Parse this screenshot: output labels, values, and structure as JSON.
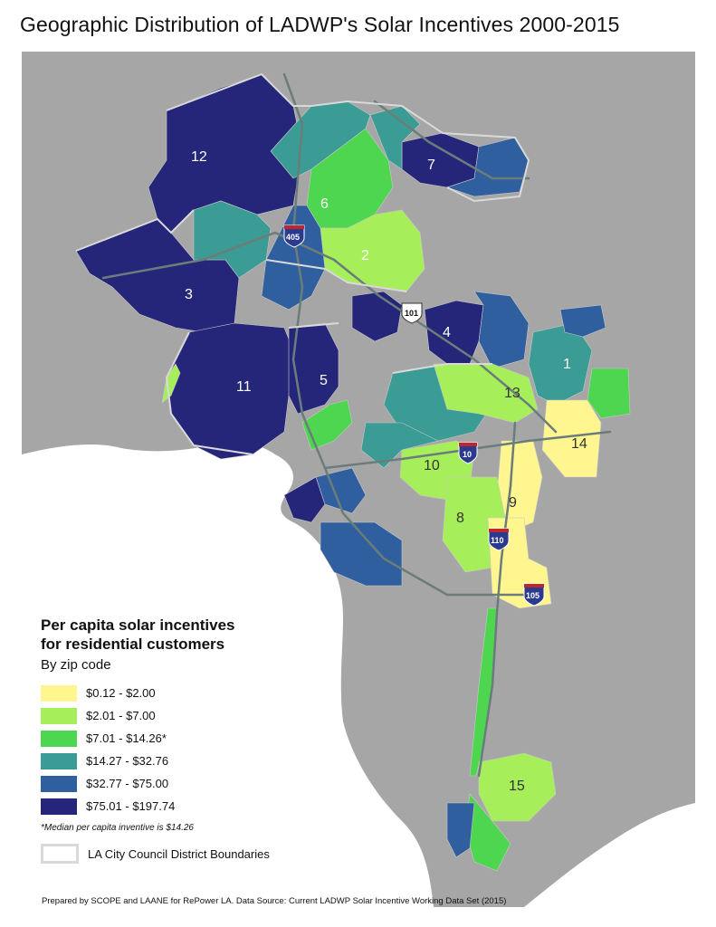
{
  "title": "Geographic Distribution of LADWP's Solar Incentives 2000-2015",
  "colors": {
    "background": "#a6a6a6",
    "ocean": "#ffffff",
    "bin1": "#fff68f",
    "bin2": "#a6ef5b",
    "bin3": "#4fd651",
    "bin4": "#3a9c94",
    "bin5": "#2f5f9e",
    "bin6": "#25267a",
    "boundary": "#d9d9d9",
    "freeway": "#6b7d7a"
  },
  "legend": {
    "title_line1": "Per capita solar incentives",
    "title_line2": "for residential customers",
    "subtitle": "By zip code",
    "items": [
      {
        "label": "$0.12 - $2.00",
        "color": "#fff68f"
      },
      {
        "label": "$2.01 - $7.00",
        "color": "#a6ef5b"
      },
      {
        "label": "$7.01 - $14.26*",
        "color": "#4fd651"
      },
      {
        "label": "$14.27 - $32.76",
        "color": "#3a9c94"
      },
      {
        "label": "$32.77 - $75.00",
        "color": "#2f5f9e"
      },
      {
        "label": "$75.01 - $197.74",
        "color": "#25267a"
      }
    ],
    "note": "*Median per capita inventive is $14.26",
    "boundary_label": "LA City Council District Boundaries"
  },
  "districts": [
    "1",
    "2",
    "3",
    "4",
    "5",
    "6",
    "7",
    "8",
    "9",
    "10",
    "11",
    "12",
    "13",
    "14",
    "15"
  ],
  "highways": [
    "405",
    "101",
    "10",
    "110",
    "105"
  ],
  "footer": "Prepared by SCOPE and LAANE for RePower LA. Data Source: Current LADWP Solar Incentive Working Data Set (2015)"
}
